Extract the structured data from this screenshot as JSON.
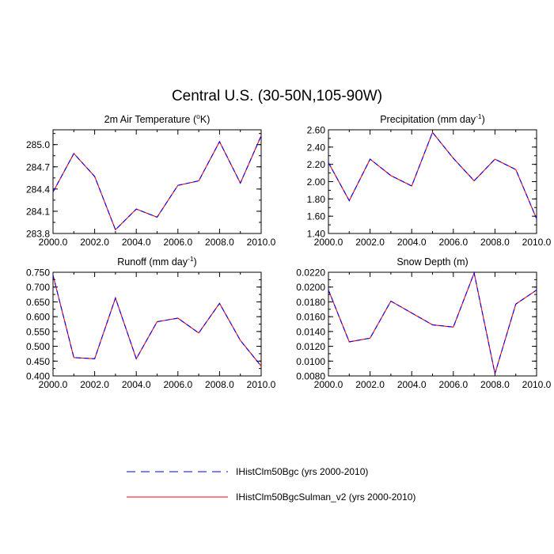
{
  "figure_title": "Central U.S. (30-50N,105-90W)",
  "legend": {
    "entries": [
      {
        "label": "IHistClm50Bgc (yrs 2000-2010)",
        "color": "#0000ff",
        "dash": "dashed"
      },
      {
        "label": "IHistClm50BgcSulman_v2 (yrs 2000-2010)",
        "color": "#ff0000",
        "dash": "solid"
      }
    ]
  },
  "chart_data": [
    {
      "type": "line",
      "title_main": "2m Air Temperature (",
      "title_sup": "o",
      "title_tail": "K)",
      "x": [
        2000,
        2001,
        2002,
        2003,
        2004,
        2005,
        2006,
        2007,
        2008,
        2009,
        2010
      ],
      "xticks": [
        "2000.0",
        "2002.0",
        "2004.0",
        "2006.0",
        "2008.0",
        "2010.0"
      ],
      "xlim": [
        2000,
        2010
      ],
      "ylim": [
        283.8,
        285.2
      ],
      "yticks": [
        283.8,
        284.1,
        284.4,
        284.7,
        285.0
      ],
      "ytick_labels": [
        "283.8",
        "284.1",
        "284.4",
        "284.7",
        "285.0"
      ],
      "series": [
        {
          "name": "IHistClm50Bgc (yrs 2000-2010)",
          "color": "#0000ff",
          "dash": "dashed",
          "values": [
            284.36,
            284.88,
            284.57,
            283.85,
            284.13,
            284.02,
            284.45,
            284.51,
            285.04,
            284.48,
            285.12
          ]
        },
        {
          "name": "IHistClm50BgcSulman_v2 (yrs 2000-2010)",
          "color": "#ff0000",
          "dash": "solid",
          "values": [
            284.36,
            284.88,
            284.57,
            283.85,
            284.13,
            284.02,
            284.45,
            284.51,
            285.04,
            284.48,
            285.12
          ]
        }
      ]
    },
    {
      "type": "line",
      "title_main": "Precipitation (mm day",
      "title_sup": "-1",
      "title_tail": ")",
      "x": [
        2000,
        2001,
        2002,
        2003,
        2004,
        2005,
        2006,
        2007,
        2008,
        2009,
        2010
      ],
      "xticks": [
        "2000.0",
        "2002.0",
        "2004.0",
        "2006.0",
        "2008.0",
        "2010.0"
      ],
      "xlim": [
        2000,
        2010
      ],
      "ylim": [
        1.4,
        2.6
      ],
      "yticks": [
        1.4,
        1.6,
        1.8,
        2.0,
        2.2,
        2.4,
        2.6
      ],
      "ytick_labels": [
        "1.40",
        "1.60",
        "1.80",
        "2.00",
        "2.20",
        "2.40",
        "2.60"
      ],
      "series": [
        {
          "name": "IHistClm50Bgc (yrs 2000-2010)",
          "color": "#0000ff",
          "dash": "dashed",
          "values": [
            2.22,
            1.78,
            2.26,
            2.07,
            1.95,
            2.57,
            2.27,
            2.01,
            2.26,
            2.14,
            1.57
          ]
        },
        {
          "name": "IHistClm50BgcSulman_v2 (yrs 2000-2010)",
          "color": "#ff0000",
          "dash": "solid",
          "values": [
            2.22,
            1.78,
            2.26,
            2.07,
            1.95,
            2.57,
            2.27,
            2.01,
            2.26,
            2.14,
            1.57
          ]
        }
      ]
    },
    {
      "type": "line",
      "title_main": "Runoff (mm day",
      "title_sup": "-1",
      "title_tail": ")",
      "x": [
        2000,
        2001,
        2002,
        2003,
        2004,
        2005,
        2006,
        2007,
        2008,
        2009,
        2010
      ],
      "xticks": [
        "2000.0",
        "2002.0",
        "2004.0",
        "2006.0",
        "2008.0",
        "2010.0"
      ],
      "xlim": [
        2000,
        2010
      ],
      "ylim": [
        0.4,
        0.75
      ],
      "yticks": [
        0.4,
        0.45,
        0.5,
        0.55,
        0.6,
        0.65,
        0.7,
        0.75
      ],
      "ytick_labels": [
        "0.400",
        "0.450",
        "0.500",
        "0.550",
        "0.600",
        "0.650",
        "0.700",
        "0.750"
      ],
      "series": [
        {
          "name": "IHistClm50Bgc (yrs 2000-2010)",
          "color": "#0000ff",
          "dash": "dashed",
          "values": [
            0.74,
            0.462,
            0.458,
            0.663,
            0.458,
            0.583,
            0.595,
            0.545,
            0.645,
            0.52,
            0.433
          ]
        },
        {
          "name": "IHistClm50BgcSulman_v2 (yrs 2000-2010)",
          "color": "#ff0000",
          "dash": "solid",
          "values": [
            0.74,
            0.462,
            0.458,
            0.663,
            0.458,
            0.583,
            0.595,
            0.545,
            0.645,
            0.52,
            0.433
          ]
        }
      ]
    },
    {
      "type": "line",
      "title_main": "Snow Depth (m)",
      "title_sup": "",
      "title_tail": "",
      "x": [
        2000,
        2001,
        2002,
        2003,
        2004,
        2005,
        2006,
        2007,
        2008,
        2009,
        2010
      ],
      "xticks": [
        "2000.0",
        "2002.0",
        "2004.0",
        "2006.0",
        "2008.0",
        "2010.0"
      ],
      "xlim": [
        2000,
        2010
      ],
      "ylim": [
        0.008,
        0.022
      ],
      "yticks": [
        0.008,
        0.01,
        0.012,
        0.014,
        0.016,
        0.018,
        0.02,
        0.022
      ],
      "ytick_labels": [
        "0.0080",
        "0.0100",
        "0.0120",
        "0.0140",
        "0.0160",
        "0.0180",
        "0.0200",
        "0.0220"
      ],
      "series": [
        {
          "name": "IHistClm50Bgc (yrs 2000-2010)",
          "color": "#0000ff",
          "dash": "dashed",
          "values": [
            0.0196,
            0.0126,
            0.0131,
            0.0181,
            0.0165,
            0.0149,
            0.0146,
            0.0219,
            0.0083,
            0.0177,
            0.0196
          ]
        },
        {
          "name": "IHistClm50BgcSulman_v2 (yrs 2000-2010)",
          "color": "#ff0000",
          "dash": "solid",
          "values": [
            0.0196,
            0.0126,
            0.0131,
            0.0181,
            0.0165,
            0.0149,
            0.0146,
            0.0219,
            0.0083,
            0.0177,
            0.0196
          ]
        }
      ]
    }
  ]
}
